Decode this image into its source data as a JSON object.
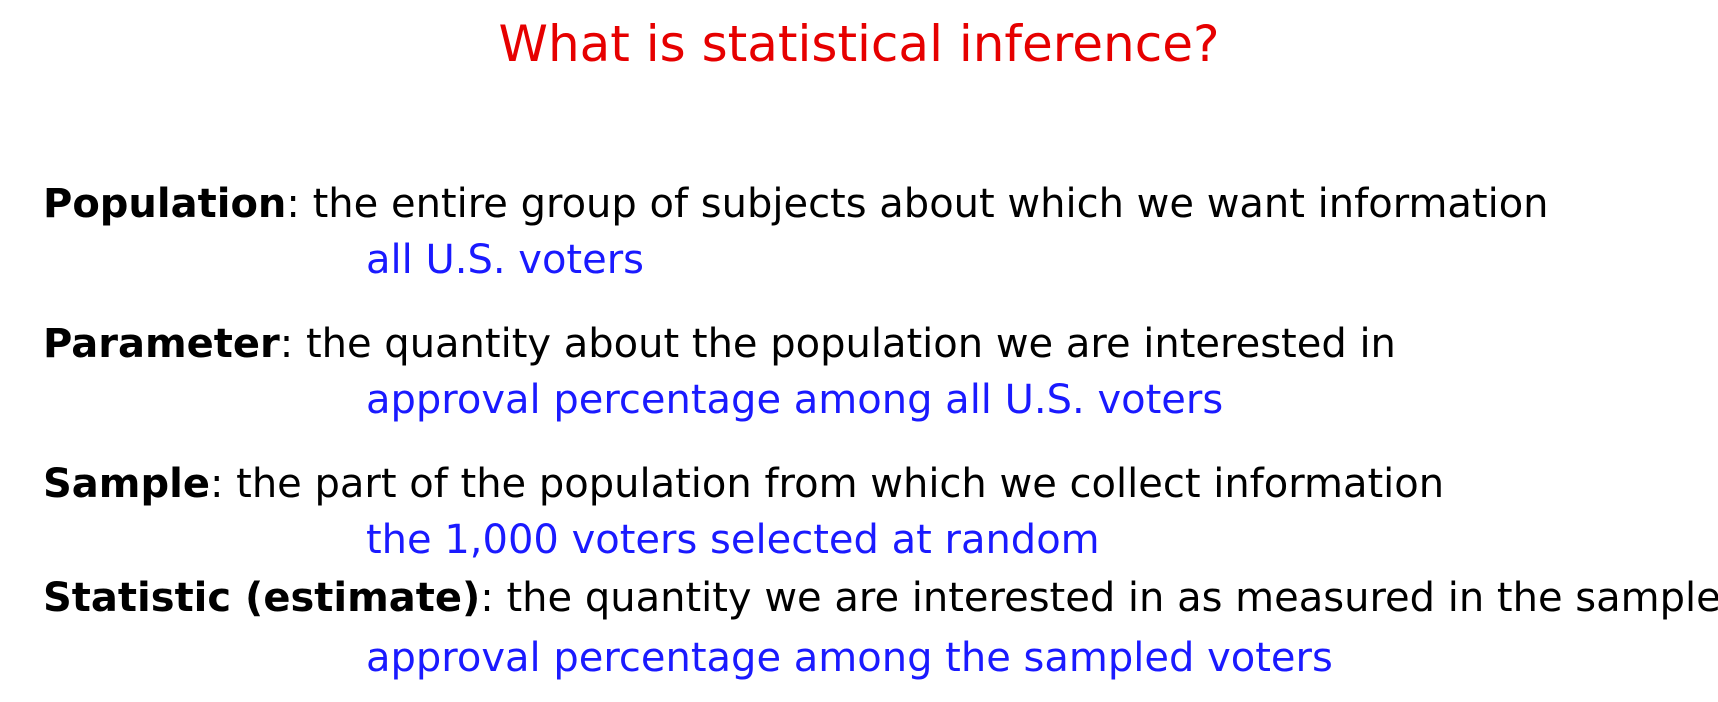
{
  "slide": {
    "title": "What is statistical inference?",
    "title_color": "#e60000",
    "example_color": "#1a1aff"
  },
  "definitions": [
    {
      "term": "Population",
      "definition": ": the entire group of subjects about which we want information",
      "example": "all U.S. voters"
    },
    {
      "term": "Parameter",
      "definition": ": the quantity about the population we are interested in",
      "example": "approval percentage among all U.S. voters"
    },
    {
      "term": "Sample",
      "definition": ": the part of the population from which we collect information",
      "example": "the 1,000 voters selected at random"
    },
    {
      "term": "Statistic (estimate)",
      "definition": ": the quantity we are interested in as measured in the sample",
      "example": "approval percentage among the sampled voters"
    }
  ]
}
